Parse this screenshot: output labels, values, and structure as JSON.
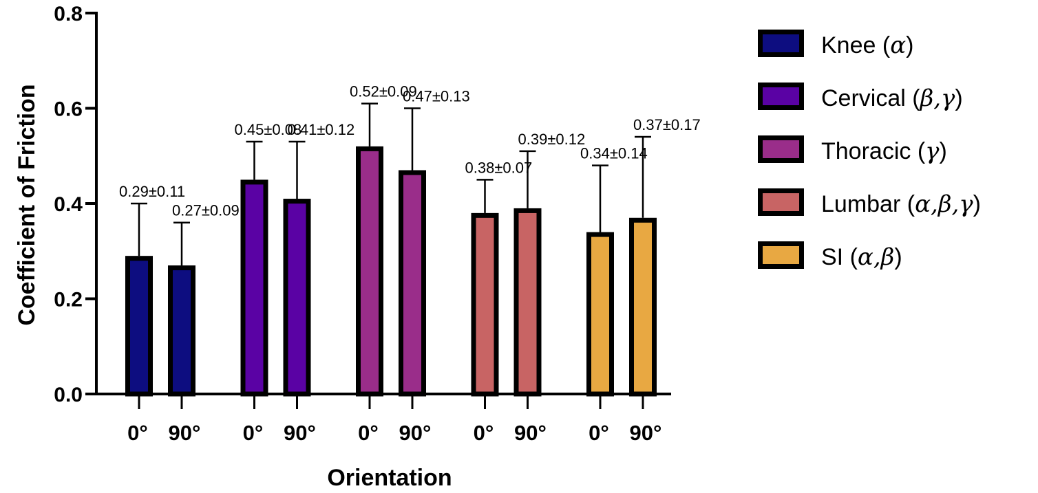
{
  "chart_data": {
    "type": "bar",
    "title": "",
    "xlabel": "Orientation",
    "ylabel": "Coefficient of Friction",
    "ylim": [
      0,
      0.8
    ],
    "yticks": [
      "0.0",
      "0.2",
      "0.4",
      "0.6",
      "0.8"
    ],
    "grid": false,
    "legend_position": "right",
    "categories": [
      "0°",
      "90°"
    ],
    "series": [
      {
        "name": "Knee",
        "annotation": "α",
        "color": "#0d0d80",
        "values": [
          0.29,
          0.27
        ],
        "errors": [
          0.11,
          0.09
        ],
        "labels": [
          "0.29±0.11",
          "0.27±0.09"
        ]
      },
      {
        "name": "Cervical",
        "annotation": "β,γ",
        "color": "#5a02a4",
        "values": [
          0.45,
          0.41
        ],
        "errors": [
          0.08,
          0.12
        ],
        "labels": [
          "0.45±0.08",
          "0.41±0.12"
        ]
      },
      {
        "name": "Thoracic",
        "annotation": "γ",
        "color": "#9a2d8a",
        "values": [
          0.52,
          0.47
        ],
        "errors": [
          0.09,
          0.13
        ],
        "labels": [
          "0.52±0.09",
          "0.47±0.13"
        ]
      },
      {
        "name": "Lumbar",
        "annotation": "α,β,γ",
        "color": "#c86464",
        "values": [
          0.38,
          0.39
        ],
        "errors": [
          0.07,
          0.12
        ],
        "labels": [
          "0.38±0.07",
          "0.39±0.12"
        ]
      },
      {
        "name": "SI",
        "annotation": "α,β",
        "color": "#e8a842",
        "values": [
          0.34,
          0.37
        ],
        "errors": [
          0.14,
          0.17
        ],
        "labels": [
          "0.34±0.14",
          "0.37±0.17"
        ]
      }
    ]
  }
}
